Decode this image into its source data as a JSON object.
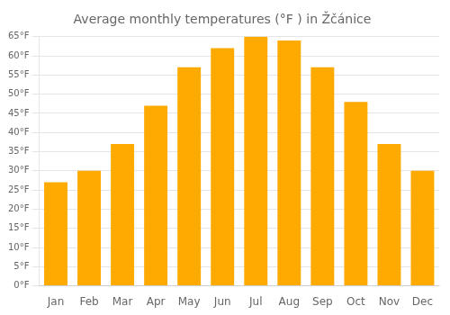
{
  "chart_data": {
    "type": "bar",
    "title": "Average monthly temperatures (°F ) in Žčánice",
    "categories": [
      "Jan",
      "Feb",
      "Mar",
      "Apr",
      "May",
      "Jun",
      "Jul",
      "Aug",
      "Sep",
      "Oct",
      "Nov",
      "Dec"
    ],
    "values": [
      27,
      30,
      37,
      47,
      57,
      62,
      65,
      64,
      57,
      48,
      37,
      30
    ],
    "color": "#FFAA00",
    "ylim": [
      0,
      65
    ],
    "yticks": [
      {
        "value": 0,
        "label": "0°F"
      },
      {
        "value": 5,
        "label": "5°F"
      },
      {
        "value": 10,
        "label": "10°F"
      },
      {
        "value": 15,
        "label": "15°F"
      },
      {
        "value": 20,
        "label": "20°F"
      },
      {
        "value": 25,
        "label": "25°F"
      },
      {
        "value": 30,
        "label": "30°F"
      },
      {
        "value": 35,
        "label": "35°F"
      },
      {
        "value": 40,
        "label": "40°F"
      },
      {
        "value": 45,
        "label": "45°F"
      },
      {
        "value": 50,
        "label": "50°F"
      },
      {
        "value": 55,
        "label": "55°F"
      },
      {
        "value": 60,
        "label": "60°F"
      },
      {
        "value": 65,
        "label": "65°F"
      }
    ],
    "grid": true
  }
}
